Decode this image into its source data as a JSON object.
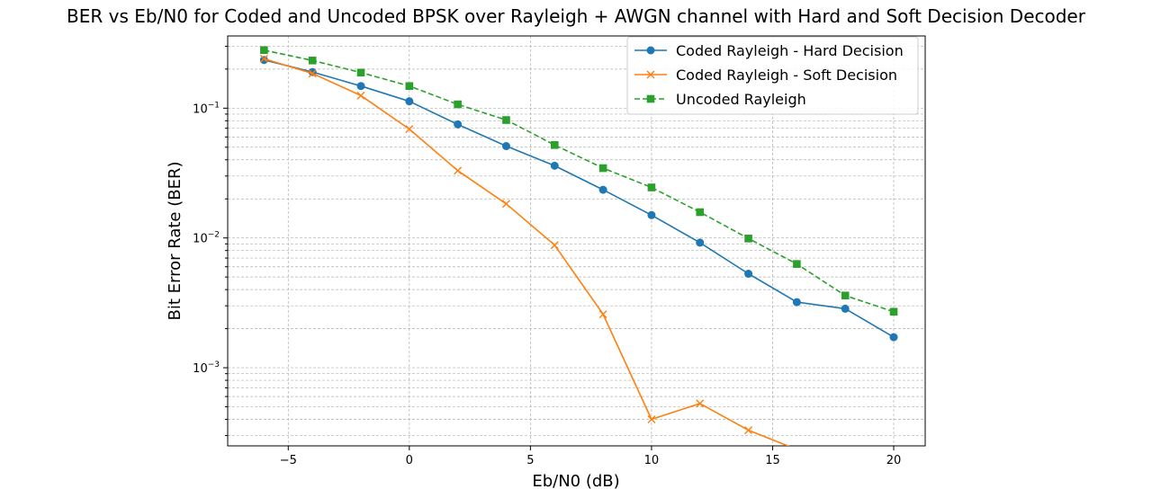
{
  "chart_data": {
    "type": "line",
    "title": "BER vs Eb/N0 for Coded and Uncoded BPSK over Rayleigh + AWGN channel with Hard and Soft Decision Decoder",
    "xlabel": "Eb/N0 (dB)",
    "ylabel": "Bit Error Rate (BER)",
    "xlim": [
      -7.5,
      21.3
    ],
    "ylim": [
      0.00025,
      0.36
    ],
    "yscale": "log",
    "grid": true,
    "legend_position": "top-right",
    "x_ticks": [
      {
        "value": -5,
        "label": "−5"
      },
      {
        "value": 0,
        "label": "0"
      },
      {
        "value": 5,
        "label": "5"
      },
      {
        "value": 10,
        "label": "10"
      },
      {
        "value": 15,
        "label": "15"
      },
      {
        "value": 20,
        "label": "20"
      }
    ],
    "y_ticks": [
      {
        "value": 0.001,
        "base": "10",
        "exp": "−3"
      },
      {
        "value": 0.01,
        "base": "10",
        "exp": "−2"
      },
      {
        "value": 0.1,
        "base": "10",
        "exp": "−1"
      }
    ],
    "x": [
      -6,
      -4,
      -2,
      0,
      2,
      4,
      6,
      8,
      10,
      12,
      14,
      16,
      18,
      20
    ],
    "series": [
      {
        "name": "Coded Rayleigh - Hard Decision",
        "color": "#1f77b4",
        "marker": "circle",
        "dash": "solid",
        "values": [
          0.235,
          0.19,
          0.148,
          0.113,
          0.075,
          0.051,
          0.036,
          0.0235,
          0.015,
          0.0092,
          0.0053,
          0.0032,
          0.00285,
          0.00172
        ]
      },
      {
        "name": "Coded Rayleigh - Soft Decision",
        "color": "#ff7f0e",
        "marker": "x",
        "dash": "solid",
        "values": [
          0.24,
          0.185,
          0.125,
          0.069,
          0.033,
          0.0183,
          0.0088,
          0.00258,
          0.0004,
          0.00053,
          0.00033,
          0,
          null,
          null
        ]
      },
      {
        "name": "Uncoded Rayleigh",
        "color": "#2ca02c",
        "marker": "square",
        "dash": "dashed",
        "values": [
          0.28,
          0.233,
          0.188,
          0.148,
          0.107,
          0.081,
          0.052,
          0.0345,
          0.0245,
          0.0158,
          0.0099,
          0.0063,
          0.0036,
          0.0027
        ]
      }
    ]
  }
}
